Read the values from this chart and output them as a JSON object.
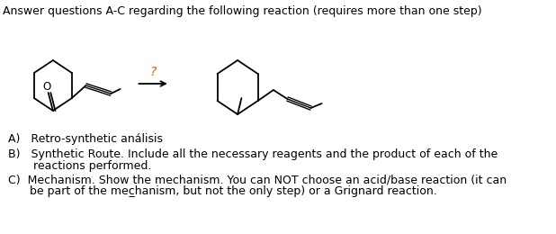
{
  "title": "Answer questions A-C regarding the following reaction (requires more than one step)",
  "question_mark": "?",
  "label_A": "A)   Retro-synthetic análisis",
  "label_B_line1": "B)   Synthetic Route. Include all the necessary reagents and the product of each of the",
  "label_B_line2": "       reactions performed.",
  "label_C_line1": "C)  Mechanism. Show the mechanism. You can NOT choose an acid/base reaction (it can",
  "label_C_line2": "      be part of the mec̲hanism, but not the only step) or a Grignard reaction.",
  "bg_color": "#ffffff",
  "text_color": "#000000",
  "question_mark_color": "#cc6600",
  "title_fontsize": 9.0,
  "body_fontsize": 9.0
}
